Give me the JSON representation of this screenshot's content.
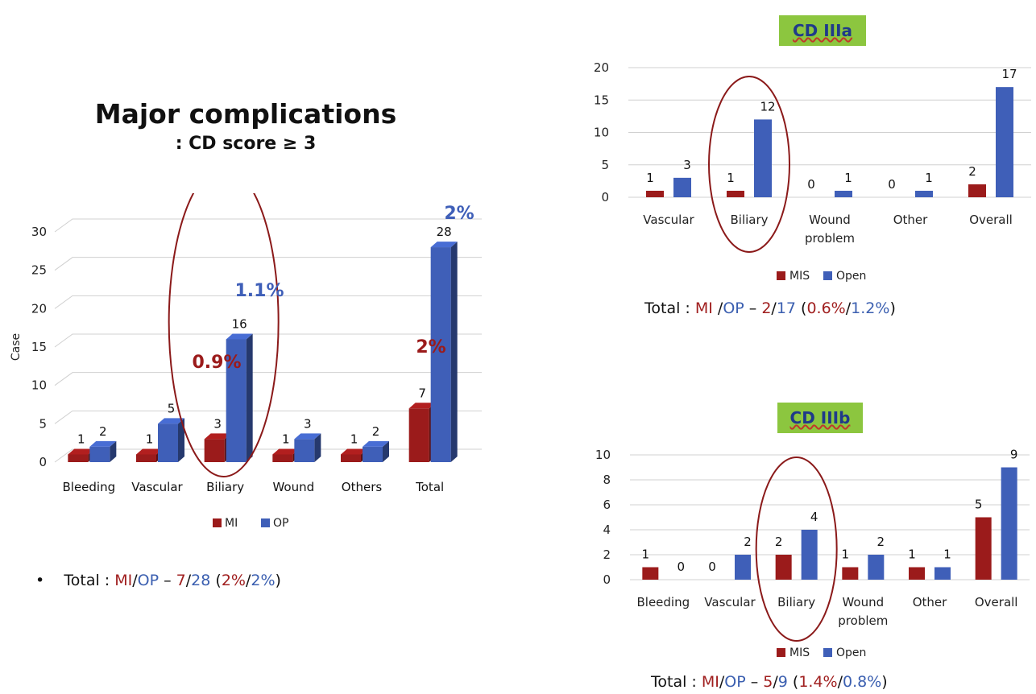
{
  "left": {
    "title": "Major complications",
    "subtitle": ": CD score ≥ 3",
    "total": {
      "bullet": "•",
      "prefix": "Total : ",
      "mi": "MI",
      "sep1": "/",
      "op": "OP",
      "dash": " – ",
      "mi_n": "7",
      "sep2": "/",
      "op_n": "28",
      "open_paren": " (",
      "mi_pct": "2%",
      "sep3": "/",
      "op_pct": "2%",
      "close_paren": ")"
    }
  },
  "cd3a": {
    "box_label": "CD IIIa",
    "total": {
      "prefix": "Total : ",
      "mi": "MI",
      "sep1": " /",
      "op": "OP",
      "dash": " – ",
      "mi_n": "2",
      "sep2": "/",
      "op_n": "17",
      "open_paren": " (",
      "mi_pct": "0.6%",
      "sep3": "/",
      "op_pct": "1.2%",
      "close_paren": ")"
    }
  },
  "cd3b": {
    "box_label": "CD IIIb",
    "total": {
      "prefix": "Total : ",
      "mi": "MI",
      "sep1": "/",
      "op": "OP",
      "dash": " – ",
      "mi_n": "5",
      "sep2": "/",
      "op_n": "9",
      "open_paren": " (",
      "mi_pct": "1.4%",
      "sep3": "/",
      "op_pct": "0.8%",
      "close_paren": ")"
    }
  },
  "colors": {
    "red": "#9b1b1b",
    "blue": "#3f5fb8",
    "circle": "#8b1a1a",
    "box": "#8cc63f"
  },
  "chart_data": [
    {
      "type": "bar",
      "style": "3d",
      "title": "Major complications",
      "subtitle": ": CD score ≥ 3",
      "ylabel": "Case",
      "ylim": [
        0,
        30
      ],
      "yticks": [
        0,
        5,
        10,
        15,
        20,
        25,
        30
      ],
      "categories": [
        "Bleeding",
        "Vascular",
        "Biliary",
        "Wound",
        "Others",
        "Total"
      ],
      "series": [
        {
          "name": "MI",
          "color": "#9b1b1b",
          "values": [
            1,
            1,
            3,
            1,
            1,
            7
          ]
        },
        {
          "name": "OP",
          "color": "#3f5fb8",
          "values": [
            2,
            5,
            16,
            3,
            2,
            28
          ]
        }
      ],
      "legend_position": "bottom",
      "annotations": [
        {
          "text": "1.1%",
          "color": "#3f5fb8"
        },
        {
          "text": "0.9%",
          "color": "#9b1b1b"
        },
        {
          "text": "2%",
          "color": "#9b1b1b"
        },
        {
          "text": "2%",
          "color": "#3f5fb8"
        }
      ],
      "highlight": "Biliary"
    },
    {
      "type": "bar",
      "title": "CD IIIa",
      "ylim": [
        0,
        20
      ],
      "yticks": [
        0,
        5,
        10,
        15,
        20
      ],
      "categories": [
        "Vascular",
        "Biliary",
        "Wound problem",
        "Other",
        "Overall"
      ],
      "series": [
        {
          "name": "MIS",
          "color": "#9b1b1b",
          "values": [
            1,
            1,
            0,
            0,
            2
          ]
        },
        {
          "name": "Open",
          "color": "#3f5fb8",
          "values": [
            3,
            12,
            1,
            1,
            17
          ]
        }
      ],
      "legend_position": "bottom",
      "highlight": "Biliary"
    },
    {
      "type": "bar",
      "title": "CD IIIb",
      "ylim": [
        0,
        10
      ],
      "yticks": [
        0,
        2,
        4,
        6,
        8,
        10
      ],
      "categories": [
        "Bleeding",
        "Vascular",
        "Biliary",
        "Wound problem",
        "Other",
        "Overall"
      ],
      "series": [
        {
          "name": "MIS",
          "color": "#9b1b1b",
          "values": [
            1,
            0,
            2,
            1,
            1,
            5
          ]
        },
        {
          "name": "Open",
          "color": "#3f5fb8",
          "values": [
            0,
            2,
            4,
            2,
            1,
            9
          ]
        }
      ],
      "legend_position": "bottom",
      "highlight": "Biliary"
    }
  ]
}
